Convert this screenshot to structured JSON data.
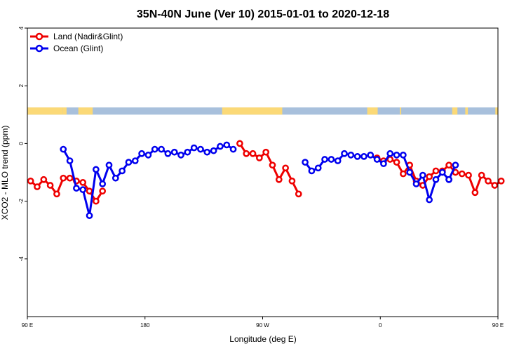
{
  "chart_data": {
    "type": "line",
    "title": "35N-40N June (Ver 10)   2015-01-01 to 2020-12-18",
    "xlabel": "Longitude (deg E)",
    "ylabel": "XCO2 - MLO trend (ppm)",
    "xlim": [
      90,
      450
    ],
    "ylim": [
      -6,
      4
    ],
    "x_ticks": [
      {
        "value": 90,
        "label": "90 E"
      },
      {
        "value": 180,
        "label": "180"
      },
      {
        "value": 270,
        "label": "90 W"
      },
      {
        "value": 360,
        "label": "0"
      },
      {
        "value": 450,
        "label": "90 E"
      },
      {
        "value": 540,
        "label": "180"
      }
    ],
    "y_ticks": [
      {
        "value": -4,
        "label": "-4"
      },
      {
        "value": -2,
        "label": "-2"
      },
      {
        "value": 0,
        "label": "0"
      },
      {
        "value": 2,
        "label": "2"
      },
      {
        "value": 4,
        "label": "4"
      }
    ],
    "grid": false,
    "legend_position": "top-left",
    "land_ocean_strip": {
      "y_range": [
        1.0,
        1.25
      ],
      "land_color": "#fbd977",
      "ocean_color": "#a8c0dc",
      "land_segments": [
        [
          90,
          117
        ],
        [
          117,
          120
        ],
        [
          129,
          140
        ],
        [
          239,
          285
        ],
        [
          350,
          358
        ],
        [
          375,
          376
        ],
        [
          415,
          419
        ],
        [
          425,
          427
        ],
        [
          448,
          450
        ]
      ]
    },
    "series": [
      {
        "name": "Land (Nadir&Glint)",
        "color": "#ee0000",
        "segments": [
          {
            "x": [
              92.5,
              97.5,
              102.5,
              107.5,
              112.5,
              117.5,
              122.5,
              127.5,
              132.5,
              137.5,
              142.5,
              147.5
            ],
            "y": [
              -1.3,
              -1.5,
              -1.25,
              -1.45,
              -1.75,
              -1.2,
              -1.2,
              -1.3,
              -1.35,
              -1.65,
              -2.0,
              -1.65
            ]
          },
          {
            "x": [
              252.5,
              257.5,
              262.5,
              267.5,
              272.5,
              277.5,
              282.5,
              287.5,
              292.5,
              297.5
            ],
            "y": [
              0.0,
              -0.35,
              -0.35,
              -0.5,
              -0.3,
              -0.75,
              -1.25,
              -0.85,
              -1.3,
              -1.75
            ]
          },
          {
            "x": [
              357.5,
              362.5,
              367.5,
              372.5,
              377.5,
              382.5,
              387.5,
              392.5,
              397.5,
              402.5,
              407.5,
              412.5,
              417.5,
              422.5,
              427.5,
              432.5,
              437.5,
              442.5,
              447.5,
              452.5
            ],
            "y": [
              -0.5,
              -0.6,
              -0.55,
              -0.65,
              -1.05,
              -0.75,
              -1.3,
              -1.45,
              -1.15,
              -0.95,
              -0.95,
              -0.75,
              -1.0,
              -1.05,
              -1.1,
              -1.7,
              -1.1,
              -1.3,
              -1.45,
              -1.3
            ]
          }
        ]
      },
      {
        "name": "Ocean (Glint)",
        "color": "#0000ee",
        "segments": [
          {
            "x": [
              117.5,
              122.5,
              127.5,
              132.5,
              137.5,
              142.5,
              147.5,
              152.5,
              157.5,
              162.5,
              167.5,
              172.5,
              177.5,
              182.5,
              187.5,
              192.5,
              197.5,
              202.5,
              207.5,
              212.5,
              217.5,
              222.5,
              227.5,
              232.5,
              237.5,
              242.5,
              247.5
            ],
            "y": [
              -0.2,
              -0.6,
              -1.55,
              -1.6,
              -2.5,
              -0.9,
              -1.4,
              -0.75,
              -1.2,
              -0.95,
              -0.65,
              -0.6,
              -0.35,
              -0.4,
              -0.2,
              -0.2,
              -0.35,
              -0.3,
              -0.4,
              -0.3,
              -0.15,
              -0.2,
              -0.3,
              -0.25,
              -0.1,
              -0.05,
              -0.2
            ]
          },
          {
            "x": [
              302.5,
              307.5,
              312.5,
              317.5,
              322.5,
              327.5,
              332.5,
              337.5,
              342.5,
              347.5,
              352.5,
              357.5,
              362.5,
              367.5,
              372.5,
              377.5,
              382.5,
              387.5,
              392.5,
              397.5,
              402.5,
              407.5,
              412.5
            ],
            "y": [
              -0.65,
              -0.95,
              -0.85,
              -0.55,
              -0.55,
              -0.6,
              -0.35,
              -0.4,
              -0.45,
              -0.45,
              -0.4,
              -0.55,
              -0.7,
              -0.35,
              -0.4,
              -0.4,
              -1.0,
              -1.4,
              -1.1,
              -1.95,
              -1.25,
              -1.0,
              -1.25
            ]
          },
          {
            "x": [
              412.5,
              417.5
            ],
            "y": [
              -1.25,
              -0.75
            ]
          }
        ]
      }
    ]
  }
}
